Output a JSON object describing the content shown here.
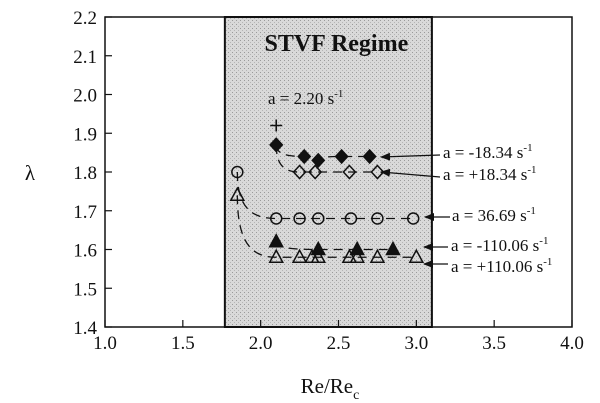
{
  "chart_data": {
    "type": "scatter",
    "title": "",
    "xlabel": "Re/Re",
    "xlabel_sub": "c",
    "ylabel": "λ",
    "xlim": [
      1.0,
      4.0
    ],
    "ylim": [
      1.4,
      2.2
    ],
    "xticks": [
      "1.0",
      "1.5",
      "2.0",
      "2.5",
      "3.0",
      "3.5",
      "4.0"
    ],
    "yticks": [
      "1.4",
      "1.5",
      "1.6",
      "1.7",
      "1.8",
      "1.9",
      "2.0",
      "2.1",
      "2.2"
    ],
    "grid": false,
    "shaded_region": {
      "label": "STVF Regime",
      "x": [
        1.77,
        3.1
      ]
    },
    "series": [
      {
        "marker": "plus",
        "fill": "none",
        "annotation": "a = 2.20 s",
        "annotation_sup": "-1",
        "points": [
          [
            2.1,
            1.92
          ]
        ]
      },
      {
        "marker": "diamond",
        "fill": "filled",
        "annotation": "a = -18.34 s",
        "annotation_sup": "-1",
        "points": [
          [
            2.1,
            1.87
          ],
          [
            2.28,
            1.84
          ],
          [
            2.37,
            1.83
          ],
          [
            2.52,
            1.84
          ],
          [
            2.7,
            1.84
          ]
        ]
      },
      {
        "marker": "diamond",
        "fill": "open",
        "annotation": "a = +18.34 s",
        "annotation_sup": "-1",
        "points": [
          [
            2.1,
            1.87
          ],
          [
            2.25,
            1.8
          ],
          [
            2.35,
            1.8
          ],
          [
            2.57,
            1.8
          ],
          [
            2.75,
            1.8
          ]
        ]
      },
      {
        "marker": "circle",
        "fill": "open",
        "annotation": "a = 36.69 s",
        "annotation_sup": "-1",
        "points": [
          [
            1.85,
            1.8
          ],
          [
            2.1,
            1.68
          ],
          [
            2.25,
            1.68
          ],
          [
            2.37,
            1.68
          ],
          [
            2.58,
            1.68
          ],
          [
            2.75,
            1.68
          ],
          [
            2.98,
            1.68
          ]
        ]
      },
      {
        "marker": "triangle",
        "fill": "filled",
        "annotation": "a = -110.06 s",
        "annotation_sup": "-1",
        "points": [
          [
            2.1,
            1.62
          ],
          [
            2.37,
            1.6
          ],
          [
            2.62,
            1.6
          ],
          [
            2.85,
            1.6
          ]
        ]
      },
      {
        "marker": "triangle",
        "fill": "open",
        "annotation": "a = +110.06 s",
        "annotation_sup": "-1",
        "points": [
          [
            1.85,
            1.74
          ],
          [
            2.1,
            1.58
          ],
          [
            2.25,
            1.58
          ],
          [
            2.33,
            1.58
          ],
          [
            2.37,
            1.58
          ],
          [
            2.57,
            1.58
          ],
          [
            2.62,
            1.58
          ],
          [
            2.75,
            1.58
          ],
          [
            3.0,
            1.58
          ]
        ]
      }
    ]
  }
}
